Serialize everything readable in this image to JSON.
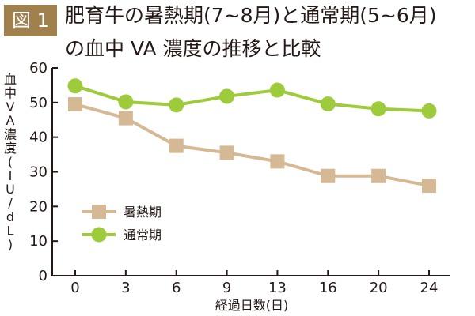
{
  "figure_label": "図 1",
  "title_line1": "肥育牛の暑熱期(7~8月)と通常期(5~6月)",
  "title_line2": "の血中 VA 濃度の推移と比較",
  "colors": {
    "badge": "#a0804c",
    "heat": "#d5b894",
    "normal": "#9dcb3b",
    "axis": "#231815"
  },
  "chart_data": {
    "type": "line",
    "title": "肥育牛の暑熱期(7~8月)と通常期(5~6月)の血中 VA 濃度の推移と比較",
    "xlabel": "経過日数(日)",
    "ylabel": "血中VA濃度(IU/dL)",
    "categories": [
      "0",
      "3",
      "6",
      "9",
      "13",
      "16",
      "20",
      "24"
    ],
    "ylim": [
      0,
      60
    ],
    "yticks": [
      0,
      10,
      20,
      30,
      40,
      50,
      60
    ],
    "grid": false,
    "legend": "bottom-left",
    "series": [
      {
        "name": "暑熱期",
        "marker": "square",
        "color": "#d5b894",
        "values": [
          49.5,
          45.5,
          37.5,
          35.5,
          33,
          28.8,
          28.8,
          26
        ]
      },
      {
        "name": "通常期",
        "marker": "circle",
        "color": "#9dcb3b",
        "values": [
          54.8,
          50.2,
          49.3,
          51.8,
          53.6,
          49.6,
          48.2,
          47.6
        ]
      }
    ]
  }
}
